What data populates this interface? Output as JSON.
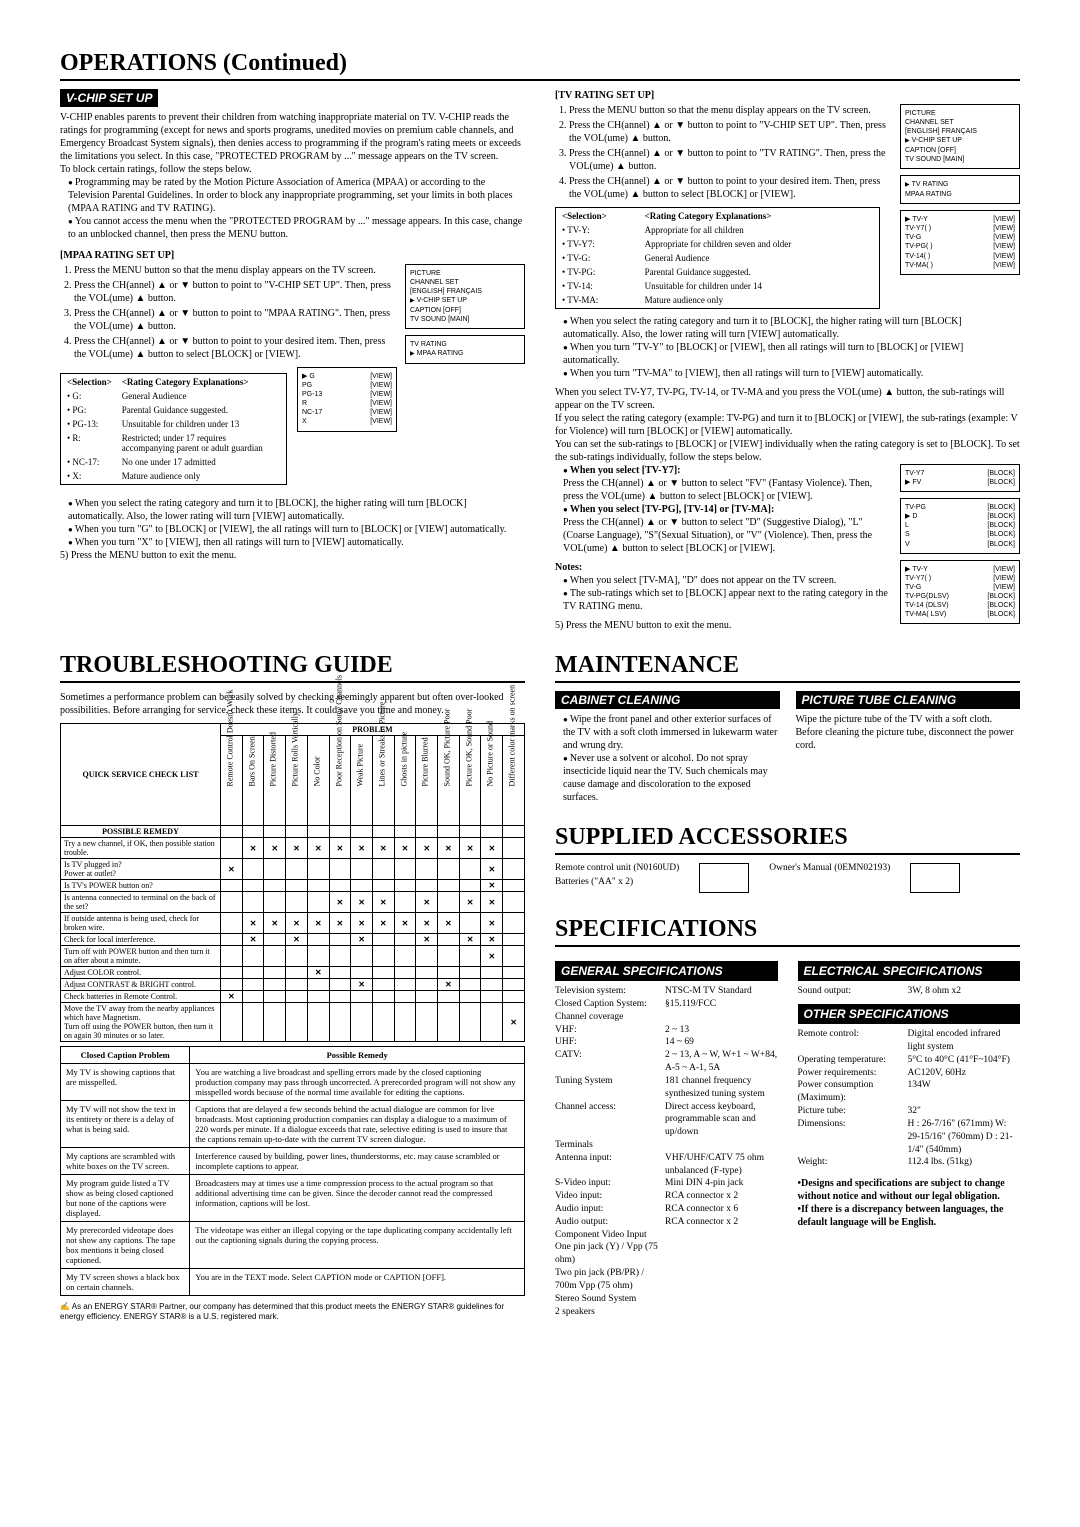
{
  "titles": {
    "operations": "OPERATIONS (Continued)",
    "troubleshooting": "TROUBLESHOOTING GUIDE",
    "maintenance": "MAINTENANCE",
    "supplied": "SUPPLIED ACCESSORIES",
    "specifications": "SPECIFICATIONS"
  },
  "subheaders": {
    "vchip": "V-CHIP SET UP",
    "cabinet": "CABINET CLEANING",
    "tube": "PICTURE TUBE CLEANING",
    "general": "GENERAL SPECIFICATIONS",
    "electrical": "ELECTRICAL SPECIFICATIONS",
    "other": "OTHER SPECIFICATIONS"
  },
  "vchip_intro": "V-CHIP enables parents to prevent their children from watching inappropriate material on TV. V-CHIP reads the ratings for programming (except for news and sports programs, unedited movies on premium cable channels, and Emergency Broadcast System signals), then denies access to programming if the program's rating meets or exceeds the limitations you select. In this case, \"PROTECTED PROGRAM by ...\" message appears on the TV screen.",
  "vchip_block_intro": "To block certain ratings, follow the steps below.",
  "vchip_bullets": [
    "Programming may be rated by the Motion Picture Association of America (MPAA) or according to the Television Parental Guidelines. In order to block any inappropriate programming, set your limits in both places (MPAA RATING and TV RATING).",
    "You cannot access the menu when the \"PROTECTED PROGRAM by ...\" message appears. In this case, change to an unblocked channel, then press the MENU button."
  ],
  "mpaa_hdr": "[MPAA RATING SET UP]",
  "mpaa_steps": [
    "Press the MENU button so that the menu display appears on the TV screen.",
    "Press the CH(annel) ▲ or ▼ button to point to \"V-CHIP SET UP\". Then, press the VOL(ume) ▲ button.",
    "Press the CH(annel) ▲ or ▼ button to point to \"MPAA RATING\". Then, press the VOL(ume) ▲ button.",
    "Press the CH(annel) ▲ or ▼ button to point to your desired item. Then, press the VOL(ume) ▲ button to select [BLOCK] or [VIEW]."
  ],
  "mpaa_table_hdr": [
    "<Selection>",
    "<Rating Category Explanations>"
  ],
  "mpaa_table": [
    [
      "• G:",
      "General Audience"
    ],
    [
      "• PG:",
      "Parental Guidance suggested."
    ],
    [
      "• PG-13:",
      "Unsuitable for children under 13"
    ],
    [
      "• R:",
      "Restricted; under 17 requires accompanying parent or adult guardian"
    ],
    [
      "• NC-17:",
      "No one under 17 admitted"
    ],
    [
      "• X:",
      "Mature audience only"
    ]
  ],
  "mpaa_notes": [
    "When you select the rating category and turn it to [BLOCK], the higher rating will turn [BLOCK] automatically. Also, the lower rating will turn [VIEW] automatically.",
    "When you turn \"G\" to [BLOCK] or [VIEW], the all ratings will turn to [BLOCK] or [VIEW] automatically.",
    "When you turn \"X\" to [VIEW], then all ratings will turn to [VIEW] automatically."
  ],
  "mpaa_step5": "5) Press the MENU button to exit the menu.",
  "tv_hdr": "[TV RATING SET UP]",
  "tv_steps": [
    "Press the MENU button so that the menu display appears on the TV screen.",
    "Press the CH(annel) ▲ or ▼ button to point to \"V-CHIP SET UP\". Then, press the VOL(ume) ▲ button.",
    "Press the CH(annel) ▲ or ▼ button to point to \"TV RATING\". Then, press the VOL(ume) ▲ button.",
    "Press the CH(annel) ▲ or ▼ button to point to your desired item. Then, press the VOL(ume) ▲ button to select [BLOCK] or [VIEW]."
  ],
  "tv_table": [
    [
      "• TV-Y:",
      "Appropriate for all children"
    ],
    [
      "• TV-Y7:",
      "Appropriate for children seven and older"
    ],
    [
      "• TV-G:",
      "General Audience"
    ],
    [
      "• TV-PG:",
      "Parental Guidance suggested."
    ],
    [
      "• TV-14:",
      "Unsuitable for children under 14"
    ],
    [
      "• TV-MA:",
      "Mature audience only"
    ]
  ],
  "tv_notes1": [
    "When you select the rating category and turn it to [BLOCK], the higher rating will turn [BLOCK] automatically. Also, the lower rating will turn [VIEW] automatically.",
    "When you turn \"TV-Y\" to [BLOCK] or [VIEW], then all ratings will turn to [BLOCK] or [VIEW] automatically.",
    "When you turn \"TV-MA\" to [VIEW], then all ratings will turn to [VIEW] automatically."
  ],
  "tv_sub_para": "When you select TV-Y7, TV-PG, TV-14, or TV-MA and you press the VOL(ume) ▲ button, the sub-ratings will appear on the TV screen.",
  "tv_sub_para2": "If you select the rating category (example: TV-PG) and turn it to [BLOCK] or [VIEW], the sub-ratings (example: V for Violence) will turn [BLOCK] or [VIEW] automatically.",
  "tv_sub_para3": "You can set the sub-ratings to [BLOCK] or [VIEW] individually when the rating category is set to [BLOCK]. To set the sub-ratings individually, follow the steps below.",
  "tv_sub_y7_hdr": "When you select [TV-Y7]:",
  "tv_sub_y7": "Press the CH(annel) ▲ or ▼ button to select \"FV\" (Fantasy Violence). Then, press the VOL(ume) ▲ button to select [BLOCK] or [VIEW].",
  "tv_sub_pg_hdr": "When you select [TV-PG], [TV-14] or [TV-MA]:",
  "tv_sub_pg": "Press the CH(annel) ▲ or ▼ button to select \"D\" (Suggestive Dialog), \"L\"(Coarse Language), \"S\"(Sexual Situation), or \"V\" (Violence). Then, press the VOL(ume) ▲ button to select [BLOCK] or [VIEW].",
  "tv_notes2_hdr": "Notes:",
  "tv_notes2": [
    "When you select [TV-MA], \"D\" does not appear on the TV screen.",
    "The sub-ratings which set to [BLOCK] appear next to the rating category in the TV RATING menu."
  ],
  "tv_step5": "5) Press the MENU button to exit the menu.",
  "osd1": {
    "lines": [
      "PICTURE",
      "CHANNEL SET",
      "[ENGLISH]  FRANÇAIS"
    ],
    "arrow": "V-CHIP SET UP",
    "after": [
      "CAPTION     [OFF]",
      "TV SOUND  [MAIN]"
    ]
  },
  "osd2": {
    "lines": [
      "TV RATING"
    ],
    "arrow": "MPAA RATING"
  },
  "osd3": {
    "rows": [
      [
        "G",
        "[VIEW]"
      ],
      [
        "PG",
        "[VIEW]"
      ],
      [
        "PG-13",
        "[VIEW]"
      ],
      [
        "R",
        "[VIEW]"
      ],
      [
        "NC-17",
        "[VIEW]"
      ],
      [
        "X",
        "[VIEW]"
      ]
    ],
    "arrow_idx": 0
  },
  "osd_r1": {
    "lines": [
      "PICTURE",
      "CHANNEL SET",
      "[ENGLISH]  FRANÇAIS"
    ],
    "arrow": "V-CHIP SET UP",
    "after": [
      "CAPTION     [OFF]",
      "TV SOUND  [MAIN]"
    ]
  },
  "osd_r2": {
    "arrow": "TV RATING",
    "after": [
      "MPAA RATING"
    ]
  },
  "osd_r3": {
    "rows": [
      [
        "TV-Y",
        "[VIEW]"
      ],
      [
        "TV-Y7(     )",
        "[VIEW]"
      ],
      [
        "TV-G",
        "[VIEW]"
      ],
      [
        "TV-PG(     )",
        "[VIEW]"
      ],
      [
        "TV-14(     )",
        "[VIEW]"
      ],
      [
        "TV-MA(     )",
        "[VIEW]"
      ]
    ],
    "arrow_idx": 0
  },
  "osd_r4": {
    "rows": [
      [
        "TV-Y7",
        "[BLOCK]"
      ],
      [
        "FV",
        "[BLOCK]"
      ]
    ],
    "arrow_idx": 1
  },
  "osd_r5": {
    "rows": [
      [
        "TV-PG",
        "[BLOCK]"
      ],
      [
        "D",
        "[BLOCK]"
      ],
      [
        "L",
        "[BLOCK]"
      ],
      [
        "S",
        "[BLOCK]"
      ],
      [
        "V",
        "[BLOCK]"
      ]
    ],
    "arrow_idx": 1
  },
  "osd_r6": {
    "rows": [
      [
        "TV-Y",
        "[VIEW]"
      ],
      [
        "TV-Y7(     )",
        "[VIEW]"
      ],
      [
        "TV-G",
        "[VIEW]"
      ],
      [
        "TV-PG(DLSV)",
        "[BLOCK]"
      ],
      [
        "TV-14 (DLSV)",
        "[BLOCK]"
      ],
      [
        "TV-MA( LSV)",
        "[BLOCK]"
      ]
    ],
    "arrow_idx": 0
  },
  "trouble_intro": "Sometimes a performance problem can be easily solved by checking seemingly apparent but often over-looked possibilities. Before arranging for service, check these items. It could save you time and money.",
  "trouble_check_hdr": "QUICK SERVICE CHECK LIST",
  "trouble_problem_hdr": "PROBLEM",
  "trouble_remedy_hdr": "POSSIBLE REMEDY",
  "trouble_cols": [
    "Remote Control Doesn't Work",
    "Bars On Screen",
    "Picture Distorted",
    "Picture Rolls Vertically",
    "No Color",
    "Poor Reception on Some Channels",
    "Weak Picture",
    "Lines or Streaks in Picture",
    "Ghosts in picture",
    "Picture Blurred",
    "Sound OK, Picture Poor",
    "Picture OK, Sound Poor",
    "No Picture or Sound",
    "Different color marks on screen"
  ],
  "trouble_rows": [
    {
      "label": "Try a new channel, if OK, then possible station trouble.",
      "x": [
        0,
        1,
        1,
        1,
        1,
        1,
        1,
        1,
        1,
        1,
        1,
        1,
        1,
        0
      ]
    },
    {
      "label": "Is TV plugged in?\nPower at outlet?",
      "x": [
        1,
        0,
        0,
        0,
        0,
        0,
        0,
        0,
        0,
        0,
        0,
        0,
        1,
        0
      ]
    },
    {
      "label": "Is TV's POWER button on?",
      "x": [
        0,
        0,
        0,
        0,
        0,
        0,
        0,
        0,
        0,
        0,
        0,
        0,
        1,
        0
      ]
    },
    {
      "label": "Is antenna connected to terminal on the back of the set?",
      "x": [
        0,
        0,
        0,
        0,
        0,
        1,
        1,
        1,
        0,
        1,
        0,
        1,
        1,
        0
      ]
    },
    {
      "label": "If outside antenna is being used, check for broken wire.",
      "x": [
        0,
        1,
        1,
        1,
        1,
        1,
        1,
        1,
        1,
        1,
        1,
        0,
        1,
        0
      ]
    },
    {
      "label": "Check for local interference.",
      "x": [
        0,
        1,
        0,
        1,
        0,
        0,
        1,
        0,
        0,
        1,
        0,
        1,
        1,
        0
      ]
    },
    {
      "label": "Turn off with POWER button and then turn it on after about a minute.",
      "x": [
        0,
        0,
        0,
        0,
        0,
        0,
        0,
        0,
        0,
        0,
        0,
        0,
        1,
        0
      ]
    },
    {
      "label": "Adjust COLOR control.",
      "x": [
        0,
        0,
        0,
        0,
        1,
        0,
        0,
        0,
        0,
        0,
        0,
        0,
        0,
        0
      ]
    },
    {
      "label": "Adjust CONTRAST & BRIGHT control.",
      "x": [
        0,
        0,
        0,
        0,
        0,
        0,
        1,
        0,
        0,
        0,
        1,
        0,
        0,
        0
      ]
    },
    {
      "label": "Check batteries in Remote Control.",
      "x": [
        1,
        0,
        0,
        0,
        0,
        0,
        0,
        0,
        0,
        0,
        0,
        0,
        0,
        0
      ]
    },
    {
      "label": "Move the TV away from the nearby appliances which have Magnetism.\nTurn off using the POWER button, then turn it on again 30 minutes or so later.",
      "x": [
        0,
        0,
        0,
        0,
        0,
        0,
        0,
        0,
        0,
        0,
        0,
        0,
        0,
        1
      ]
    }
  ],
  "cc_hdr": [
    "Closed Caption Problem",
    "Possible Remedy"
  ],
  "cc_rows": [
    [
      "My TV is showing captions that are misspelled.",
      "You are watching a live broadcast and spelling errors made by the closed captioning production company may pass through uncorrected. A prerecorded program will not show any misspelled words because of the normal time available for editing the captions."
    ],
    [
      "My TV will not show the text in its entirety or there is a delay of what is being said.",
      "Captions that are delayed a few seconds behind the actual dialogue are common for live broadcasts. Most captioning production companies can display a dialogue to a maximum of 220 words per minute. If a dialogue exceeds that rate, selective editing is used to insure that the captions remain up-to-date with the current TV screen dialogue."
    ],
    [
      "My captions are scrambled with white boxes on the TV screen.",
      "Interference caused by building, power lines, thunderstorms, etc. may cause scrambled or incomplete captions to appear."
    ],
    [
      "My program guide listed a TV show as being closed captioned but none of the captions were displayed.",
      "Broadcasters may at times use a time compression process to the actual program so that additional advertising time can be given. Since the decoder cannot read the compressed information, captions will be lost."
    ],
    [
      "My prerecorded videotape does not show any captions. The tape box mentions it being closed captioned.",
      "The videotape was either an illegal copying or the tape duplicating company accidentally left out the captioning signals during the copying process."
    ],
    [
      "My TV screen shows a black box on certain channels.",
      "You are in the TEXT mode. Select CAPTION mode or CAPTION [OFF]."
    ]
  ],
  "energystar": "As an ENERGY STAR®  Partner, our company has determined that this product meets the ENERGY STAR®  guidelines for energy efficiency. ENERGY STAR®  is a U.S. registered mark.",
  "cabinet_bullets": [
    "Wipe the front panel and other exterior surfaces of the TV with a soft cloth immersed in lukewarm water and wrung dry.",
    "Never use a solvent or alcohol. Do not spray insecticide liquid near the TV. Such chemicals may cause damage and discoloration to the exposed surfaces."
  ],
  "tube_text": "Wipe the picture tube of the TV with a soft cloth. Before cleaning the picture tube, disconnect the power cord.",
  "acc": {
    "remote": "Remote control unit (N0160UD)",
    "batteries": "Batteries (\"AA\" x 2)",
    "manual": "Owner's Manual (0EMN02193)"
  },
  "specs_general": [
    [
      "Television system:",
      "NTSC-M TV Standard"
    ],
    [
      "Closed Caption System:",
      "§15.119/FCC"
    ],
    [
      "Channel coverage",
      ""
    ],
    [
      "  VHF:",
      "2 ~ 13"
    ],
    [
      "  UHF:",
      "14 ~ 69"
    ],
    [
      "  CATV:",
      "2 ~ 13, A ~ W, W+1 ~ W+84, A-5 ~ A-1, 5A"
    ],
    [
      "Tuning System",
      "181 channel frequency synthesized tuning system"
    ],
    [
      "Channel access:",
      "Direct access keyboard, programmable scan and up/down"
    ],
    [
      "Terminals",
      ""
    ],
    [
      "  Antenna input:",
      "VHF/UHF/CATV 75 ohm unbalanced (F-type)"
    ],
    [
      "  S-Video input:",
      "Mini DIN 4-pin jack"
    ],
    [
      "  Video input:",
      "RCA connector x 2"
    ],
    [
      "  Audio input:",
      "RCA connector x 6"
    ],
    [
      "  Audio output:",
      "RCA connector x 2"
    ],
    [
      "Component Video Input",
      ""
    ],
    [
      "  One pin jack (Y) / Vpp (75 ohm)",
      ""
    ],
    [
      "  Two pin jack (PB/PR) / 700m Vpp (75 ohm)",
      ""
    ],
    [
      "Stereo Sound System",
      ""
    ],
    [
      "2 speakers",
      ""
    ]
  ],
  "specs_electrical": [
    [
      "Sound output:",
      "3W, 8 ohm x2"
    ]
  ],
  "specs_other": [
    [
      "Remote control:",
      "Digital encoded infrared light system"
    ],
    [
      "Operating temperature:",
      "5°C to 40°C (41°F~104°F)"
    ],
    [
      "Power requirements:",
      "AC120V, 60Hz"
    ],
    [
      "Power consumption (Maximum):",
      "134W"
    ],
    [
      "Picture tube:",
      "32\""
    ],
    [
      "Dimensions:",
      "H : 26-7/16\" (671mm) W: 29-15/16\" (760mm) D : 21-1/4\" (540mm)"
    ],
    [
      "Weight:",
      "112.4 lbs. (51kg)"
    ]
  ],
  "spec_notes": [
    "•Designs and specifications are subject to change without notice and without our legal obligation.",
    "•If there is a discrepancy between languages, the default language will be English."
  ]
}
